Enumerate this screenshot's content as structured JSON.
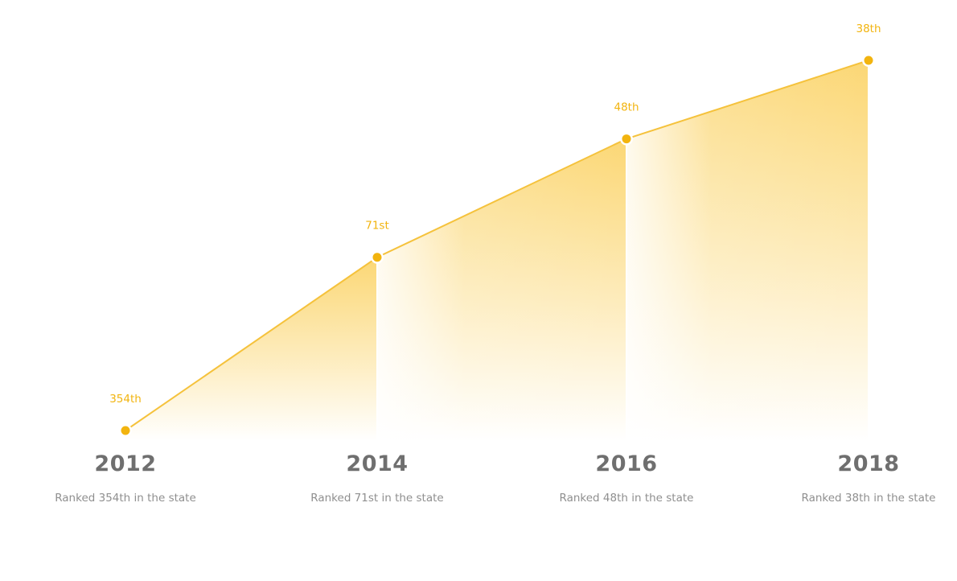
{
  "chart_data": {
    "type": "area",
    "categories": [
      "2012",
      "2014",
      "2016",
      "2018"
    ],
    "values": [
      354,
      71,
      48,
      38
    ],
    "point_labels": [
      "354th",
      "71st",
      "48th",
      "38th"
    ],
    "descriptions": [
      "Ranked 354th in the state",
      "Ranked 71st in the state",
      "Ranked 48th in the state",
      "Ranked 38th in the state"
    ],
    "title": "",
    "xlabel": "",
    "ylabel": "",
    "y_inverted": true,
    "grid": false,
    "legend": "none"
  },
  "colors": {
    "accent": "#f2b40f",
    "line": "#f5c23c",
    "fill": "#fbd56d",
    "year_text": "#6f6f6f",
    "desc_text": "#8f8f8f",
    "divider": "#ffffff"
  }
}
